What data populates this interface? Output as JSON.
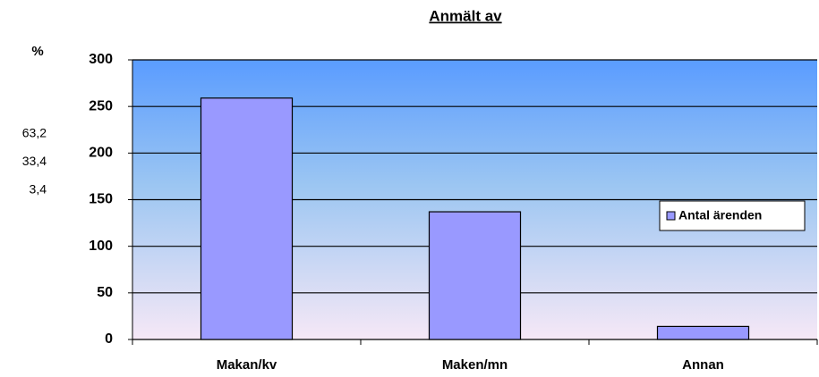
{
  "chart_data": {
    "type": "bar",
    "title": "Anmält av",
    "categories": [
      "Makan/kv",
      "Maken/mn",
      "Annan"
    ],
    "series": [
      {
        "name": "Antal ärenden",
        "color": "#9999ff",
        "values": [
          259,
          137,
          14
        ]
      }
    ],
    "ylim": [
      0,
      300
    ],
    "yticks": [
      0,
      50,
      100,
      150,
      200,
      250,
      300
    ],
    "grid": true,
    "legend": "right"
  },
  "side_table": {
    "header": "%",
    "rows": [
      "63,2",
      "33,4",
      "3,4"
    ]
  }
}
